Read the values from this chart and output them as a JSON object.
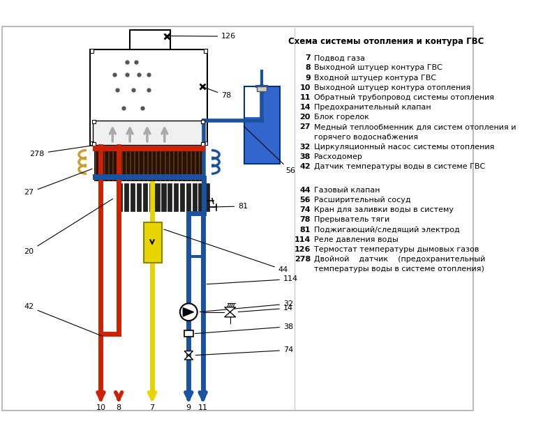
{
  "title": "Схема системы отопления и контура ГВС",
  "bg_color": "#ffffff",
  "legend_col1": [
    [
      "7",
      "Подвод газа"
    ],
    [
      "8",
      "Выходной штуцер контура ГВС"
    ],
    [
      "9",
      "Входной штуцер контура ГВС"
    ],
    [
      "10",
      "Выходной штуцер контура отопления"
    ],
    [
      "11",
      "Обратный трубопровод системы отопления"
    ],
    [
      "14",
      "Предохранительный клапан"
    ],
    [
      "20",
      "Блок горелок"
    ],
    [
      "27",
      "Медный теплообменник для систем отопления и"
    ],
    [
      "",
      "горячего водоснабжения"
    ],
    [
      "32",
      "Циркуляционный насос системы отопления"
    ],
    [
      "38",
      "Расходомер"
    ],
    [
      "42",
      "Датчик температуры воды в системе ГВС"
    ]
  ],
  "legend_col2": [
    [
      "44",
      "Газовый клапан"
    ],
    [
      "56",
      "Расширительный сосуд"
    ],
    [
      "74",
      "Кран для заливки воды в систему"
    ],
    [
      "78",
      "Прерыватель тяги"
    ],
    [
      "81",
      "Поджигающий/следящий электрод"
    ],
    [
      "114",
      "Реле давления воды"
    ],
    [
      "126",
      "Термостат температуры дымовых газов"
    ],
    [
      "278",
      "Двойной    датчик    (предохранительный"
    ],
    [
      "",
      "температуры воды в системе отопления)"
    ]
  ],
  "red_color": "#cc2200",
  "blue_color": "#1a52a0",
  "yellow_color": "#e8d400",
  "gray_color": "#999999",
  "black_color": "#000000",
  "pipe_lw": 4,
  "label_fontsize": 8
}
